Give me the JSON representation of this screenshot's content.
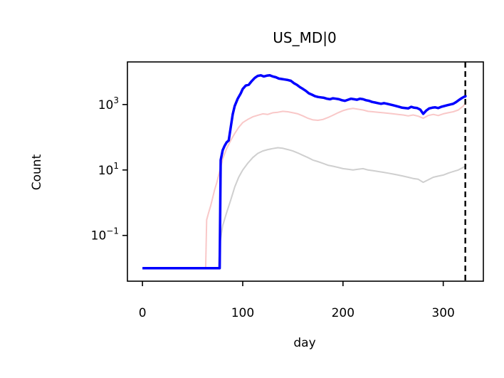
{
  "chart_data": {
    "type": "line",
    "title": "US_MD|0",
    "xlabel": "day",
    "ylabel": "Count",
    "yscale": "log",
    "xlim": [
      -15,
      340
    ],
    "ylim": [
      0.004,
      20000
    ],
    "xticks": [
      {
        "value": 0,
        "label": "0"
      },
      {
        "value": 100,
        "label": "100"
      },
      {
        "value": 200,
        "label": "200"
      },
      {
        "value": 300,
        "label": "300"
      }
    ],
    "yticks": [
      {
        "value": 0.1,
        "base": "10",
        "exp": "−1"
      },
      {
        "value": 10,
        "base": "10",
        "exp": "1"
      },
      {
        "value": 1000,
        "base": "10",
        "exp": "3"
      }
    ],
    "vline": {
      "x": 322,
      "color": "#000000",
      "style": "dashed"
    },
    "series": [
      {
        "color": "#f9c8c8",
        "stroke_width": 2,
        "points": [
          [
            0,
            0.01
          ],
          [
            63,
            0.01
          ],
          [
            64,
            0.3
          ],
          [
            66,
            0.5
          ],
          [
            68,
            0.8
          ],
          [
            70,
            1.4
          ],
          [
            72,
            2.5
          ],
          [
            74,
            4
          ],
          [
            76,
            7
          ],
          [
            78,
            12
          ],
          [
            80,
            22
          ],
          [
            84,
            45
          ],
          [
            88,
            80
          ],
          [
            92,
            130
          ],
          [
            96,
            200
          ],
          [
            100,
            280
          ],
          [
            105,
            350
          ],
          [
            110,
            420
          ],
          [
            115,
            470
          ],
          [
            120,
            520
          ],
          [
            125,
            500
          ],
          [
            130,
            560
          ],
          [
            135,
            580
          ],
          [
            140,
            620
          ],
          [
            145,
            600
          ],
          [
            150,
            560
          ],
          [
            155,
            520
          ],
          [
            160,
            450
          ],
          [
            165,
            380
          ],
          [
            170,
            340
          ],
          [
            175,
            330
          ],
          [
            180,
            350
          ],
          [
            185,
            400
          ],
          [
            190,
            470
          ],
          [
            195,
            560
          ],
          [
            200,
            650
          ],
          [
            205,
            720
          ],
          [
            210,
            760
          ],
          [
            215,
            720
          ],
          [
            220,
            680
          ],
          [
            225,
            620
          ],
          [
            230,
            600
          ],
          [
            235,
            580
          ],
          [
            240,
            560
          ],
          [
            245,
            540
          ],
          [
            250,
            520
          ],
          [
            255,
            500
          ],
          [
            260,
            480
          ],
          [
            265,
            450
          ],
          [
            270,
            480
          ],
          [
            275,
            440
          ],
          [
            280,
            380
          ],
          [
            285,
            460
          ],
          [
            290,
            500
          ],
          [
            295,
            460
          ],
          [
            300,
            520
          ],
          [
            305,
            560
          ],
          [
            310,
            600
          ],
          [
            315,
            680
          ],
          [
            320,
            900
          ],
          [
            323,
            1200
          ]
        ]
      },
      {
        "color": "#cfcfcf",
        "stroke_width": 2,
        "points": [
          [
            0,
            0.01
          ],
          [
            76,
            0.01
          ],
          [
            77,
            0.05
          ],
          [
            80,
            0.2
          ],
          [
            84,
            0.5
          ],
          [
            88,
            1.2
          ],
          [
            92,
            3
          ],
          [
            96,
            6
          ],
          [
            100,
            10
          ],
          [
            105,
            16
          ],
          [
            110,
            24
          ],
          [
            115,
            32
          ],
          [
            120,
            38
          ],
          [
            125,
            42
          ],
          [
            130,
            45
          ],
          [
            135,
            48
          ],
          [
            140,
            46
          ],
          [
            145,
            42
          ],
          [
            150,
            38
          ],
          [
            155,
            33
          ],
          [
            160,
            28
          ],
          [
            165,
            24
          ],
          [
            170,
            20
          ],
          [
            175,
            18
          ],
          [
            180,
            16
          ],
          [
            185,
            14
          ],
          [
            190,
            13
          ],
          [
            195,
            12
          ],
          [
            200,
            11
          ],
          [
            205,
            10.5
          ],
          [
            210,
            10
          ],
          [
            215,
            10.5
          ],
          [
            220,
            11
          ],
          [
            225,
            10
          ],
          [
            230,
            9.5
          ],
          [
            235,
            9
          ],
          [
            240,
            8.5
          ],
          [
            245,
            8
          ],
          [
            250,
            7.5
          ],
          [
            255,
            7
          ],
          [
            260,
            6.5
          ],
          [
            265,
            6
          ],
          [
            270,
            5.5
          ],
          [
            275,
            5.2
          ],
          [
            280,
            4.2
          ],
          [
            285,
            5
          ],
          [
            290,
            6
          ],
          [
            295,
            6.5
          ],
          [
            300,
            7
          ],
          [
            305,
            8
          ],
          [
            310,
            9
          ],
          [
            315,
            10
          ],
          [
            320,
            12
          ],
          [
            323,
            14
          ]
        ]
      },
      {
        "color": "#0000ff",
        "stroke_width": 3.5,
        "points": [
          [
            0,
            0.01
          ],
          [
            77,
            0.01
          ],
          [
            78,
            20
          ],
          [
            80,
            40
          ],
          [
            82,
            55
          ],
          [
            84,
            70
          ],
          [
            86,
            80
          ],
          [
            88,
            200
          ],
          [
            90,
            500
          ],
          [
            92,
            900
          ],
          [
            95,
            1500
          ],
          [
            98,
            2200
          ],
          [
            100,
            3000
          ],
          [
            103,
            3800
          ],
          [
            106,
            4000
          ],
          [
            109,
            5200
          ],
          [
            112,
            6500
          ],
          [
            115,
            7500
          ],
          [
            118,
            7800
          ],
          [
            121,
            7200
          ],
          [
            124,
            7600
          ],
          [
            127,
            7800
          ],
          [
            130,
            7200
          ],
          [
            133,
            6800
          ],
          [
            136,
            6200
          ],
          [
            139,
            6000
          ],
          [
            142,
            5800
          ],
          [
            145,
            5600
          ],
          [
            148,
            5300
          ],
          [
            151,
            4500
          ],
          [
            154,
            4000
          ],
          [
            157,
            3400
          ],
          [
            160,
            3000
          ],
          [
            163,
            2600
          ],
          [
            166,
            2200
          ],
          [
            169,
            2000
          ],
          [
            172,
            1800
          ],
          [
            175,
            1700
          ],
          [
            178,
            1650
          ],
          [
            181,
            1600
          ],
          [
            184,
            1500
          ],
          [
            187,
            1450
          ],
          [
            190,
            1550
          ],
          [
            193,
            1500
          ],
          [
            196,
            1450
          ],
          [
            199,
            1350
          ],
          [
            202,
            1300
          ],
          [
            205,
            1400
          ],
          [
            208,
            1500
          ],
          [
            211,
            1450
          ],
          [
            214,
            1400
          ],
          [
            217,
            1500
          ],
          [
            220,
            1450
          ],
          [
            223,
            1350
          ],
          [
            226,
            1300
          ],
          [
            229,
            1200
          ],
          [
            232,
            1150
          ],
          [
            235,
            1100
          ],
          [
            238,
            1050
          ],
          [
            241,
            1100
          ],
          [
            244,
            1050
          ],
          [
            247,
            1000
          ],
          [
            250,
            950
          ],
          [
            253,
            900
          ],
          [
            256,
            850
          ],
          [
            259,
            800
          ],
          [
            262,
            780
          ],
          [
            265,
            760
          ],
          [
            268,
            850
          ],
          [
            271,
            800
          ],
          [
            274,
            780
          ],
          [
            277,
            700
          ],
          [
            280,
            520
          ],
          [
            283,
            650
          ],
          [
            286,
            760
          ],
          [
            289,
            800
          ],
          [
            292,
            820
          ],
          [
            295,
            780
          ],
          [
            298,
            850
          ],
          [
            301,
            900
          ],
          [
            304,
            950
          ],
          [
            307,
            1000
          ],
          [
            310,
            1050
          ],
          [
            313,
            1200
          ],
          [
            316,
            1400
          ],
          [
            319,
            1600
          ],
          [
            322,
            1800
          ],
          [
            323,
            1700
          ]
        ]
      }
    ]
  }
}
